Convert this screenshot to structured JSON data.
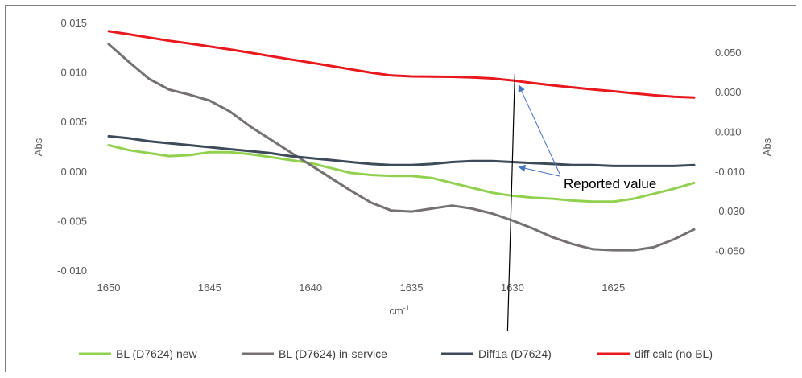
{
  "chart_data": {
    "type": "line",
    "title": "",
    "xlabel": "cm-1",
    "xlabel_base": "cm",
    "xlabel_sup": "-1",
    "ylabel": "Abs",
    "y2label": "Abs",
    "xlim": [
      1650,
      1621
    ],
    "x_reversed": true,
    "ylim": [
      -0.01,
      0.015
    ],
    "y2lim": [
      -0.06,
      0.065
    ],
    "grid": false,
    "legend_position": "bottom",
    "x_ticks": [
      {
        "value": 1650,
        "label": "1650"
      },
      {
        "value": 1645,
        "label": "1645"
      },
      {
        "value": 1640,
        "label": "1640"
      },
      {
        "value": 1635,
        "label": "1635"
      },
      {
        "value": 1630,
        "label": "1630"
      },
      {
        "value": 1625,
        "label": "1625"
      }
    ],
    "y_ticks": [
      {
        "value": 0.015,
        "label": "0.015"
      },
      {
        "value": 0.01,
        "label": "0.010"
      },
      {
        "value": 0.005,
        "label": "0.005"
      },
      {
        "value": 0.0,
        "label": "0.000"
      },
      {
        "value": -0.005,
        "label": "-0.005"
      },
      {
        "value": -0.01,
        "label": "-0.010"
      }
    ],
    "y2_ticks": [
      {
        "value": 0.05,
        "label": "0.050"
      },
      {
        "value": 0.03,
        "label": "0.030"
      },
      {
        "value": 0.01,
        "label": "0.010"
      },
      {
        "value": -0.01,
        "label": "-0.010"
      },
      {
        "value": -0.03,
        "label": "-0.030"
      },
      {
        "value": -0.05,
        "label": "-0.050"
      }
    ],
    "x": [
      1650,
      1649,
      1648,
      1647,
      1646,
      1645,
      1644,
      1643,
      1642,
      1641,
      1640,
      1639,
      1638,
      1637,
      1636,
      1635,
      1634,
      1633,
      1632,
      1631,
      1630,
      1629,
      1628,
      1627,
      1626,
      1625,
      1624,
      1623,
      1622,
      1621
    ],
    "series": [
      {
        "name": "BL (D7624) new",
        "axis": "left",
        "color": "#92d050",
        "values": [
          0.0027,
          0.0022,
          0.0019,
          0.0016,
          0.0017,
          0.002,
          0.002,
          0.0018,
          0.0015,
          0.0012,
          0.0009,
          0.0004,
          -0.0001,
          -0.0003,
          -0.0004,
          -0.0004,
          -0.0006,
          -0.0011,
          -0.0016,
          -0.0021,
          -0.0024,
          -0.0026,
          -0.0027,
          -0.0029,
          -0.003,
          -0.003,
          -0.0027,
          -0.0022,
          -0.0017,
          -0.0011
        ]
      },
      {
        "name": "BL (D7624) in-service",
        "axis": "left",
        "color": "#767171",
        "values": [
          0.0129,
          0.0111,
          0.0094,
          0.0083,
          0.0078,
          0.0072,
          0.0061,
          0.0046,
          0.0033,
          0.002,
          0.0007,
          -0.0006,
          -0.0019,
          -0.0031,
          -0.0039,
          -0.004,
          -0.0037,
          -0.0034,
          -0.0037,
          -0.0042,
          -0.0049,
          -0.0057,
          -0.0066,
          -0.0073,
          -0.0078,
          -0.0079,
          -0.0079,
          -0.0076,
          -0.0068,
          -0.0058
        ]
      },
      {
        "name": "Diff1a (D7624)",
        "axis": "left",
        "color": "#3c4a5a",
        "values": [
          0.0036,
          0.0034,
          0.0031,
          0.0029,
          0.0027,
          0.0025,
          0.0023,
          0.0021,
          0.0019,
          0.0016,
          0.0014,
          0.0012,
          0.001,
          0.0008,
          0.0007,
          0.0007,
          0.0008,
          0.001,
          0.0011,
          0.0011,
          0.001,
          0.0009,
          0.0008,
          0.0007,
          0.0007,
          0.0006,
          0.0006,
          0.0006,
          0.0006,
          0.0007
        ]
      },
      {
        "name": "diff calc (no BL)",
        "axis": "right",
        "color": "#e8181c",
        "values": [
          0.061,
          0.0595,
          0.0578,
          0.0562,
          0.0548,
          0.0533,
          0.0518,
          0.0502,
          0.0485,
          0.0468,
          0.0452,
          0.0435,
          0.0418,
          0.0401,
          0.0387,
          0.0382,
          0.0381,
          0.038,
          0.0377,
          0.0372,
          0.0362,
          0.0349,
          0.0337,
          0.0326,
          0.0316,
          0.0307,
          0.0297,
          0.0287,
          0.028,
          0.0276
        ]
      }
    ],
    "annotations": [
      {
        "text": "Reported value",
        "marker_x": 1630
      }
    ]
  }
}
